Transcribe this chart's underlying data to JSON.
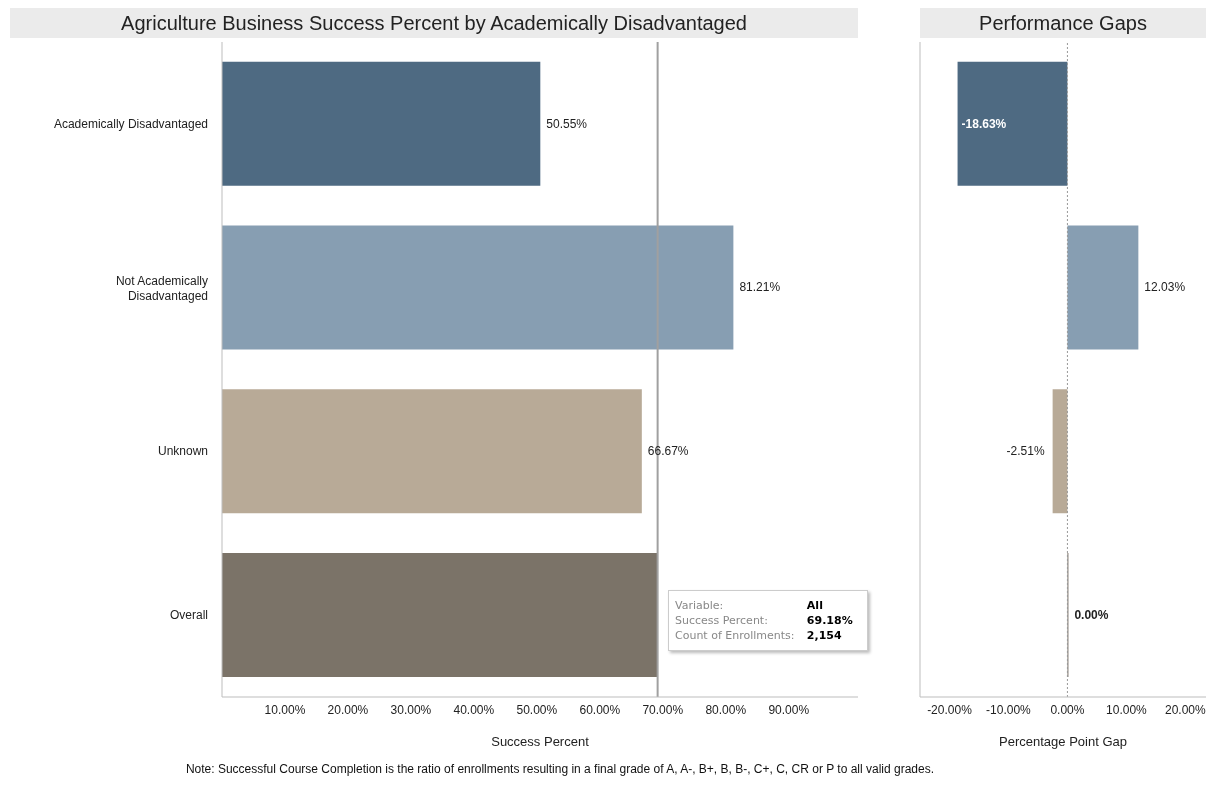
{
  "chart_data": [
    {
      "type": "bar",
      "orientation": "horizontal",
      "title": "Agriculture Business Success Percent by Academically Disadvantaged",
      "xlabel": "Success Percent",
      "categories": [
        "Academically Disadvantaged",
        "Not Academically Disadvantaged",
        "Unknown",
        "Overall"
      ],
      "values": [
        50.55,
        81.21,
        66.67,
        69.18
      ],
      "colors": [
        "#4e6a82",
        "#879eb2",
        "#b8aa97",
        "#7b7368"
      ],
      "value_labels": [
        "50.55%",
        "81.21%",
        "66.67%",
        null
      ],
      "xlim": [
        0,
        101
      ],
      "xticks": [
        {
          "value": 10,
          "label": "10.00%"
        },
        {
          "value": 20,
          "label": "20.00%"
        },
        {
          "value": 30,
          "label": "30.00%"
        },
        {
          "value": 40,
          "label": "40.00%"
        },
        {
          "value": 50,
          "label": "50.00%"
        },
        {
          "value": 60,
          "label": "60.00%"
        },
        {
          "value": 70,
          "label": "70.00%"
        },
        {
          "value": 80,
          "label": "80.00%"
        },
        {
          "value": 90,
          "label": "90.00%"
        }
      ],
      "ref_lines": [
        {
          "axis": "x",
          "value": 69.18,
          "color": "#a0a0a0",
          "line_style": "solid"
        }
      ],
      "annotations": [
        "Variable:",
        "All",
        "Success Percent:",
        "69.18%",
        "Count of Enrollments:",
        "2,154",
        "Note: Successful Course Completion is the ratio of enrollments resulting in a final grade of A, A-, B+, B, B-, C+, C, CR or P to all valid grades."
      ],
      "grid": false,
      "legend": false
    },
    {
      "type": "bar",
      "orientation": "horizontal",
      "title": "Performance Gaps",
      "xlabel": "Percentage Point Gap",
      "categories": [
        null,
        null,
        null,
        null
      ],
      "values": [
        -18.63,
        12.03,
        -2.51,
        0.0
      ],
      "colors": [
        "#4e6a82",
        "#879eb2",
        "#b8aa97",
        "#7b7368"
      ],
      "value_labels": [
        "-18.63%",
        "12.03%",
        "-2.51%",
        "0.00%"
      ],
      "xlim": [
        -25,
        23.5
      ],
      "xticks": [
        {
          "value": -20,
          "label": "-20.00%"
        },
        {
          "value": -10,
          "label": "-10.00%"
        },
        {
          "value": 0,
          "label": "0.00%"
        },
        {
          "value": 10,
          "label": "10.00%"
        },
        {
          "value": 20,
          "label": "20.00%"
        }
      ],
      "ref_lines": [
        {
          "axis": "x",
          "value": 0,
          "color": "#999999",
          "line_style": "dotted"
        }
      ],
      "tick_labels": "x",
      "grid": false,
      "legend": false
    }
  ]
}
